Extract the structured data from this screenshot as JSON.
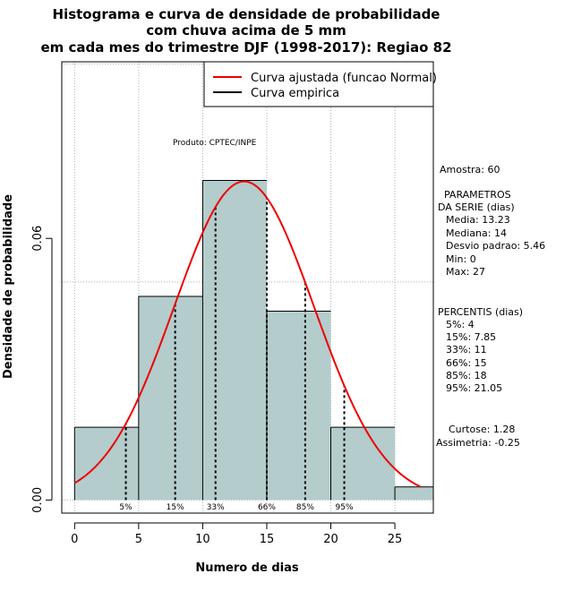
{
  "chart_data": {
    "type": "bar",
    "title_lines": [
      "Histograma e curva de densidade de probabilidade",
      "com chuva acima de 5 mm",
      "em cada mes do trimestre DJF (1998-2017): Regiao 82"
    ],
    "xlabel": "Numero de dias",
    "ylabel": "Densidade de probabilidade",
    "xlim": [
      -1,
      28
    ],
    "ylim": [
      -0.003,
      0.1005
    ],
    "xticks": [
      "0",
      "5",
      "10",
      "15",
      "20",
      "25"
    ],
    "xtick_values": [
      0,
      5,
      10,
      15,
      20,
      25
    ],
    "yticks": [
      "0.00",
      "0.06"
    ],
    "ytick_values": [
      0,
      0.06
    ],
    "gridlines_x": [
      0,
      5,
      10,
      15,
      20,
      25
    ],
    "gridlines_y": [
      0,
      0.05,
      0.1
    ],
    "bins": [
      {
        "start": 0,
        "end": 5,
        "density": 0.0167
      },
      {
        "start": 5,
        "end": 10,
        "density": 0.0467
      },
      {
        "start": 10,
        "end": 15,
        "density": 0.0733
      },
      {
        "start": 15,
        "end": 20,
        "density": 0.0433
      },
      {
        "start": 20,
        "end": 25,
        "density": 0.0167
      },
      {
        "start": 25,
        "end": 28,
        "density": 0.003
      }
    ],
    "normal_fit": {
      "mean": 13.23,
      "sd": 5.46,
      "x_from": 0,
      "x to": 27
    },
    "percentiles": [
      {
        "label": "5%",
        "x": 4
      },
      {
        "label": "15%",
        "x": 7.85
      },
      {
        "label": "33%",
        "x": 11
      },
      {
        "label": "66%",
        "x": 15
      },
      {
        "label": "85%",
        "x": 18
      },
      {
        "label": "95%",
        "x": 21.05
      }
    ],
    "legend": {
      "position": "top-right",
      "items": [
        {
          "label": "Curva ajustada (funcao Normal)",
          "color": "#ee0000"
        },
        {
          "label": "Curva empirica",
          "color": "#000000"
        }
      ]
    },
    "bar_color": "#b4cccc",
    "curve_color": "#ee0000",
    "product_label": "Produto: CPTEC/INPE",
    "side_panel": {
      "amostra": "Amostra: 60",
      "params_title_1": "PARAMETROS",
      "params_title_2": "DA SERIE (dias)",
      "media": "Media: 13.23",
      "mediana": "Mediana: 14",
      "desvio": "Desvio padrao: 5.46",
      "min": "Min: 0",
      "max": "Max: 27",
      "percentis_title": "PERCENTIS (dias)",
      "p5": "5%: 4",
      "p15": "15%: 7.85",
      "p33": "33%: 11",
      "p66": "66%: 15",
      "p85": "85%: 18",
      "p95": "95%: 21.05",
      "curtose": "Curtose: 1.28",
      "assimetria": "Assimetria: -0.25"
    }
  }
}
